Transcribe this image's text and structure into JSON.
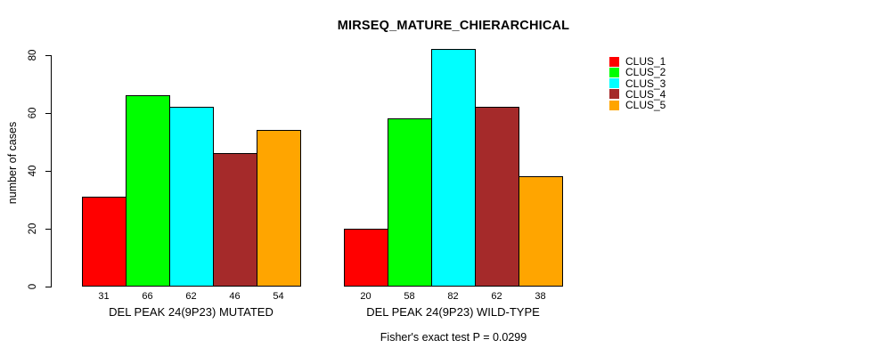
{
  "chart_data": {
    "type": "bar",
    "title": "MIRSEQ_MATURE_CHIERARCHICAL",
    "ylabel": "number of cases",
    "ylim": [
      0,
      80
    ],
    "yticks": [
      0,
      20,
      40,
      60,
      80
    ],
    "grid": false,
    "legend_position": "right",
    "categories": [
      "DEL PEAK 24(9P23) MUTATED",
      "DEL PEAK 24(9P23) WILD-TYPE"
    ],
    "series": [
      {
        "name": "CLUS_1",
        "color": "#FF0000",
        "values": [
          31,
          20
        ]
      },
      {
        "name": "CLUS_2",
        "color": "#00FF00",
        "values": [
          66,
          58
        ]
      },
      {
        "name": "CLUS_3",
        "color": "#00FFFF",
        "values": [
          62,
          82
        ]
      },
      {
        "name": "CLUS_4",
        "color": "#A52A2A",
        "values": [
          46,
          62
        ]
      },
      {
        "name": "CLUS_5",
        "color": "#FFA500",
        "values": [
          54,
          38
        ]
      }
    ],
    "bar_value_labels_shown": true,
    "caption": "Fisher's exact test P = 0.0299"
  },
  "colors": {
    "background": "#FFFFFF",
    "axis": "#000000",
    "text": "#000000"
  }
}
